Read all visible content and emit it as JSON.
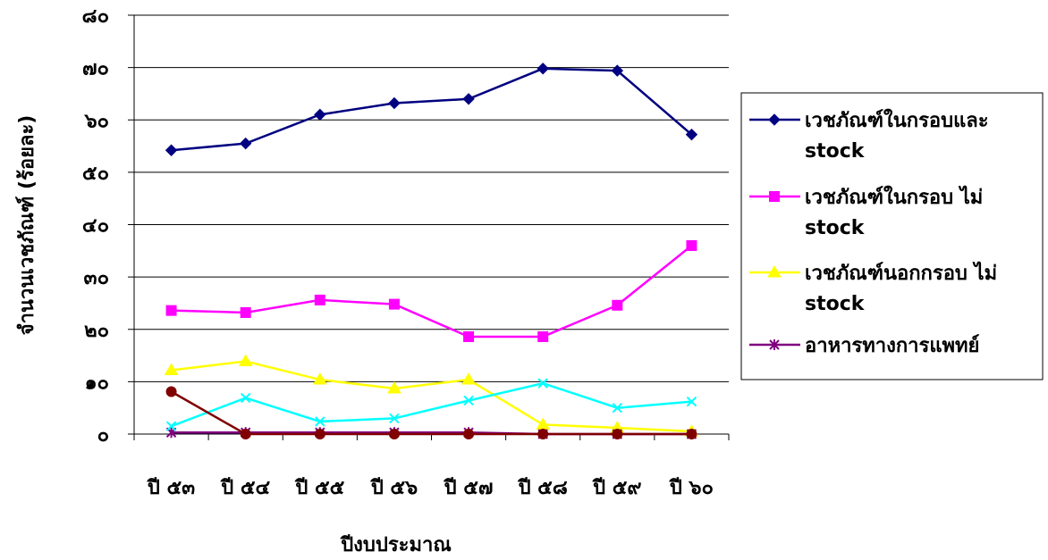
{
  "chart_data": {
    "type": "line",
    "title": "",
    "xlabel": "ปีงบประมาณ",
    "ylabel": "จำนวนเวชภัณฑ์ (ร้อยละ)",
    "categories": [
      "ปี ๕๓",
      "ปี ๕๔",
      "ปี ๕๕",
      "ปี ๕๖",
      "ปี ๕๗",
      "ปี ๕๘",
      "ปี ๕๙",
      "ปี ๖๐"
    ],
    "ylim": [
      0,
      80
    ],
    "yticks": [
      {
        "value": 0,
        "label": "๐"
      },
      {
        "value": 10,
        "label": "๑๐"
      },
      {
        "value": 20,
        "label": "๒๐"
      },
      {
        "value": 30,
        "label": "๓๐"
      },
      {
        "value": 40,
        "label": "๔๐"
      },
      {
        "value": 50,
        "label": "๕๐"
      },
      {
        "value": 60,
        "label": "๖๐"
      },
      {
        "value": 70,
        "label": "๗๐"
      },
      {
        "value": 80,
        "label": "๘๐"
      }
    ],
    "grid": true,
    "legend_position": "right",
    "series": [
      {
        "name": "เวชภัณฑ์ในกรอบและ stock",
        "values": [
          54.2,
          55.5,
          61.0,
          63.2,
          64.0,
          69.8,
          69.4,
          57.2
        ],
        "color": "#000080",
        "marker": "diamond"
      },
      {
        "name": "เวชภัณฑ์ในกรอบ ไม่ stock",
        "values": [
          23.6,
          23.2,
          25.6,
          24.8,
          18.6,
          18.6,
          24.6,
          36.0
        ],
        "color": "#FF00FF",
        "marker": "square"
      },
      {
        "name": "เวชภัณฑ์นอกกรอบ ไม่ stock",
        "values": [
          12.2,
          13.9,
          10.4,
          8.7,
          10.4,
          1.8,
          1.2,
          0.5
        ],
        "color": "#FFFF00",
        "marker": "triangle"
      },
      {
        "name": "อาหารทางการแพทย์",
        "values": [
          0.3,
          0.3,
          0.3,
          0.3,
          0.3,
          0.0,
          0.0,
          0.0
        ],
        "color": "#800080",
        "marker": "asterisk"
      },
      {
        "name": "",
        "values": [
          1.5,
          6.9,
          2.4,
          3.0,
          6.4,
          9.7,
          5.0,
          6.2
        ],
        "color": "#00FFFF",
        "marker": "x"
      },
      {
        "name": "",
        "values": [
          8.1,
          0.0,
          0.0,
          0.0,
          0.0,
          0.0,
          0.0,
          0.0
        ],
        "color": "#800000",
        "marker": "circle"
      }
    ]
  }
}
